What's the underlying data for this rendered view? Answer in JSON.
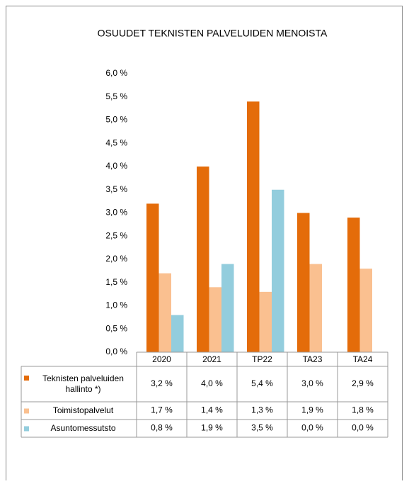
{
  "chart_data": {
    "type": "bar",
    "title": "OSUUDET TEKNISTEN PALVELUIDEN MENOISTA",
    "categories": [
      "2020",
      "2021",
      "TP22",
      "TA23",
      "TA24"
    ],
    "series": [
      {
        "name": "Teknisten palveluiden hallinto *)",
        "color": "#e46c0a",
        "values": [
          3.2,
          4.0,
          5.4,
          3.0,
          2.9
        ],
        "value_labels": [
          "3,2 %",
          "4,0 %",
          "5,4 %",
          "3,0 %",
          "2,9 %"
        ]
      },
      {
        "name": "Toimistopalvelut",
        "color": "#fac090",
        "values": [
          1.7,
          1.4,
          1.3,
          1.9,
          1.8
        ],
        "value_labels": [
          "1,7 %",
          "1,4 %",
          "1,3 %",
          "1,9 %",
          "1,8 %"
        ]
      },
      {
        "name": "Asuntomessutsto",
        "color": "#93cddd",
        "values": [
          0.8,
          1.9,
          3.5,
          0.0,
          0.0
        ],
        "value_labels": [
          "0,8 %",
          "1,9 %",
          "3,5 %",
          "0,0 %",
          "0,0 %"
        ]
      }
    ],
    "ylim": [
      0,
      6
    ],
    "yticks": [
      {
        "value": 0,
        "label": "0,0 %"
      },
      {
        "value": 0.5,
        "label": "0,5 %"
      },
      {
        "value": 1,
        "label": "1,0 %"
      },
      {
        "value": 1.5,
        "label": "1,5 %"
      },
      {
        "value": 2,
        "label": "2,0 %"
      },
      {
        "value": 2.5,
        "label": "2,5 %"
      },
      {
        "value": 3,
        "label": "3,0 %"
      },
      {
        "value": 3.5,
        "label": "3,5 %"
      },
      {
        "value": 4,
        "label": "4,0 %"
      },
      {
        "value": 4.5,
        "label": "4,5 %"
      },
      {
        "value": 5,
        "label": "5,0 %"
      },
      {
        "value": 5.5,
        "label": "5,5 %"
      },
      {
        "value": 6,
        "label": "6,0 %"
      }
    ],
    "grid": false
  }
}
